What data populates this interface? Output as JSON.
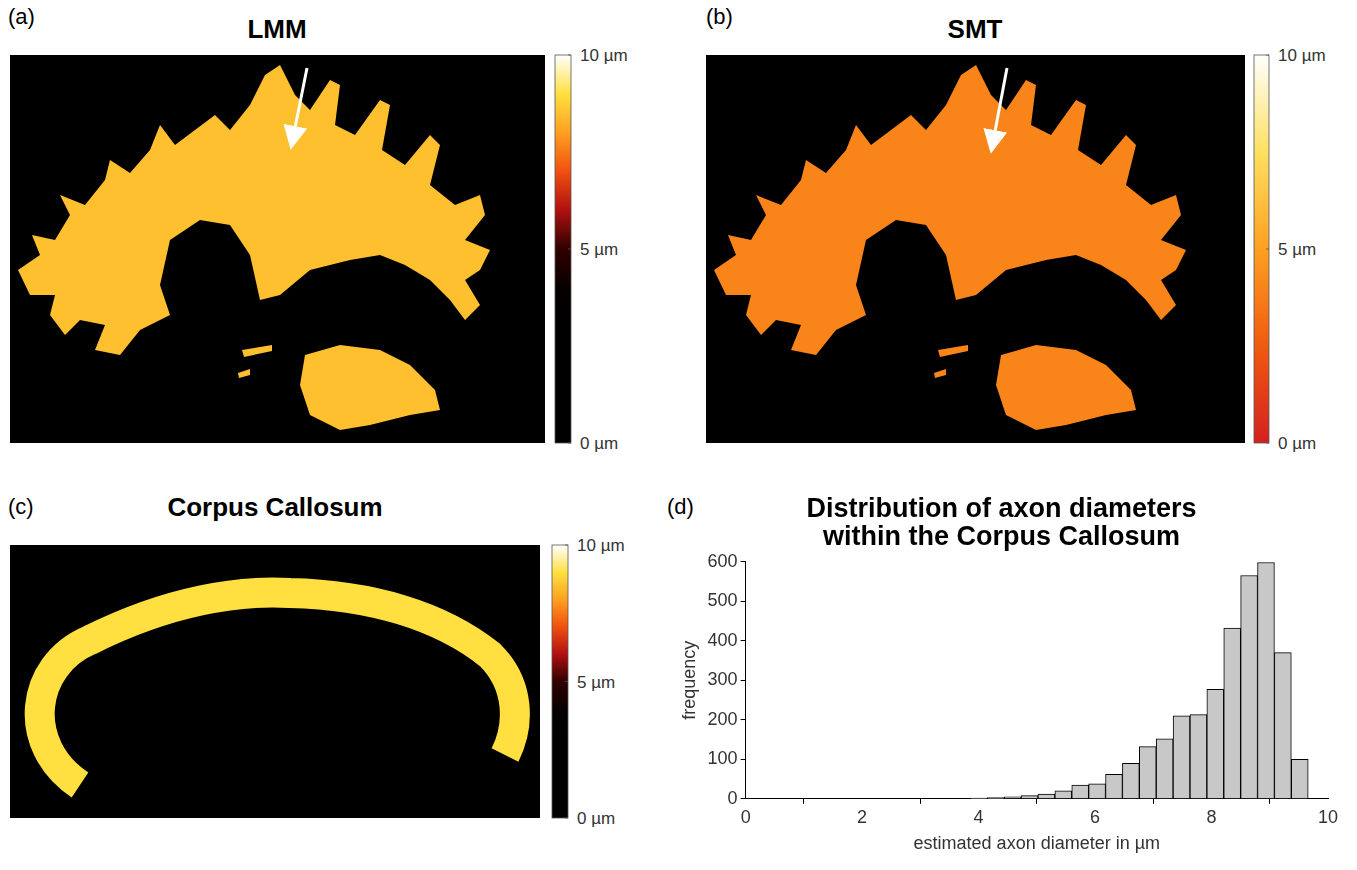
{
  "chart_data": [
    {
      "panel": "(a)",
      "type": "image",
      "title": "LMM",
      "typical_value": 8.5,
      "colorbar": {
        "range": [
          0,
          10
        ],
        "ticks": [
          {
            "value": 10,
            "label": "10 µm"
          },
          {
            "value": 5,
            "label": "5 µm"
          },
          {
            "value": 0,
            "label": "0 µm"
          }
        ],
        "colors": [
          "#000000",
          "#000000",
          "#000000",
          "#000000",
          "#080000",
          "#300000",
          "#b01010",
          "#f05010",
          "#ffa020",
          "#ffe040",
          "#ffffff"
        ]
      }
    },
    {
      "panel": "(b)",
      "type": "image",
      "title": "SMT",
      "typical_value": 4,
      "colorbar": {
        "range": [
          0,
          10
        ],
        "ticks": [
          {
            "value": 10,
            "label": "10 µm"
          },
          {
            "value": 5,
            "label": "5 µm"
          },
          {
            "value": 0,
            "label": "0 µm"
          }
        ],
        "colors": [
          "#d42020",
          "#f05a10",
          "#ffa020",
          "#ffe060",
          "#ffffff"
        ]
      }
    },
    {
      "panel": "(c)",
      "type": "image",
      "title": "Corpus Callosum",
      "typical_value": 9,
      "colorbar": {
        "range": [
          0,
          10
        ],
        "ticks": [
          {
            "value": 10,
            "label": "10 µm"
          },
          {
            "value": 5,
            "label": "5 µm"
          },
          {
            "value": 0,
            "label": "0 µm"
          }
        ],
        "colors": [
          "#000000",
          "#000000",
          "#000000",
          "#000000",
          "#080000",
          "#300000",
          "#b01010",
          "#f05010",
          "#ffa020",
          "#ffe040",
          "#ffffff"
        ]
      }
    },
    {
      "panel": "(d)",
      "type": "histogram",
      "title": "Distribution of axon diameters within the Corpus Callosum",
      "x_label": "estimated axon diameter in µm",
      "y_label": "frequency",
      "bins": [
        3.86,
        4.15,
        4.44,
        4.73,
        5.02,
        5.31,
        5.6,
        5.89,
        6.18,
        6.47,
        6.76,
        7.05,
        7.34,
        7.63,
        7.92,
        8.21,
        8.5,
        8.79,
        9.08,
        9.37,
        9.66
      ],
      "counts": [
        2,
        3,
        5,
        8,
        12,
        20,
        35,
        38,
        62,
        90,
        132,
        152,
        210,
        213,
        277,
        432,
        565,
        598,
        370,
        100
      ],
      "color": "#c8c8c8",
      "xlim": [
        0,
        10
      ],
      "xticks": [
        0,
        2,
        4,
        6,
        8,
        10
      ],
      "ylim": [
        0,
        600
      ],
      "yticks": [
        0,
        100,
        200,
        300,
        400,
        500,
        600
      ],
      "grid": false
    }
  ]
}
